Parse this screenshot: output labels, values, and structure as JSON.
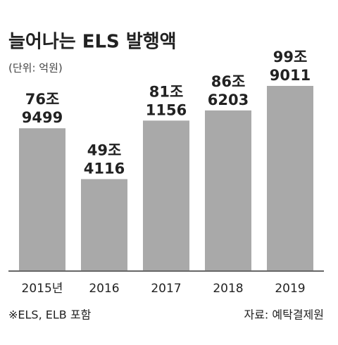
{
  "chart_data": {
    "type": "bar",
    "title": "늘어나는 ELS 발행액",
    "subtitle": "(단위: 억원)",
    "categories": [
      "2015년",
      "2016",
      "2017",
      "2018",
      "2019"
    ],
    "values": [
      769499,
      494116,
      811156,
      866203,
      999011
    ],
    "value_labels": [
      [
        "76조",
        "9499"
      ],
      [
        "49조",
        "4116"
      ],
      [
        "81조",
        "1156"
      ],
      [
        "86조",
        "6203"
      ],
      [
        "99조",
        "9011"
      ]
    ],
    "color": "#a9a9a9",
    "note": "※ELS, ELB 포함",
    "source": "자료: 예탁결제원"
  }
}
